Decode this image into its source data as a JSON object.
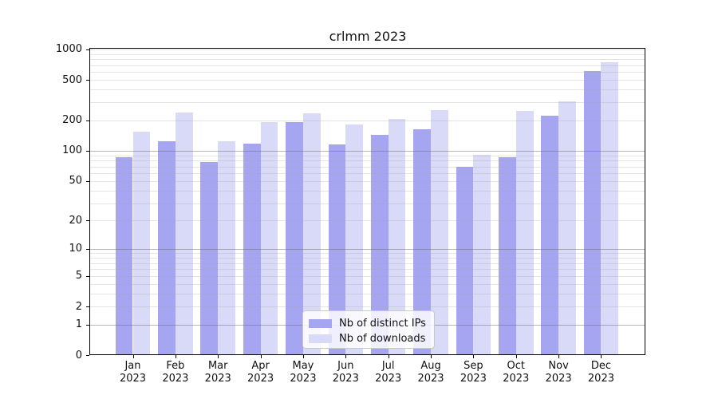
{
  "chart_data": {
    "type": "bar",
    "title": "crlmm 2023",
    "categories": [
      "Jan 2023",
      "Feb 2023",
      "Mar 2023",
      "Apr 2023",
      "May 2023",
      "Jun 2023",
      "Jul 2023",
      "Aug 2023",
      "Sep 2023",
      "Oct 2023",
      "Nov 2023",
      "Dec 2023"
    ],
    "series": [
      {
        "name": "Nb of distinct IPs",
        "color": "#a5a5f2",
        "values": [
          87,
          124,
          77,
          118,
          191,
          116,
          143,
          162,
          69,
          87,
          223,
          608
        ]
      },
      {
        "name": "Nb of downloads",
        "color": "#d9d9f8",
        "values": [
          155,
          238,
          124,
          191,
          234,
          182,
          206,
          251,
          91,
          248,
          310,
          752
        ]
      }
    ],
    "yscale": "log10(1+x)",
    "ylim": [
      0,
      1032
    ],
    "yticks": [
      0,
      1,
      2,
      5,
      10,
      20,
      50,
      100,
      200,
      500,
      1000
    ],
    "major_gridlines": [
      1,
      10,
      100
    ],
    "minor_gridlines": [
      2,
      3,
      4,
      5,
      6,
      7,
      8,
      9,
      20,
      30,
      40,
      50,
      60,
      70,
      80,
      90,
      200,
      300,
      400,
      500,
      600,
      700,
      800,
      900,
      1000
    ],
    "grid": "on",
    "xlabel": "",
    "ylabel": "",
    "legend_position": "lower center"
  }
}
